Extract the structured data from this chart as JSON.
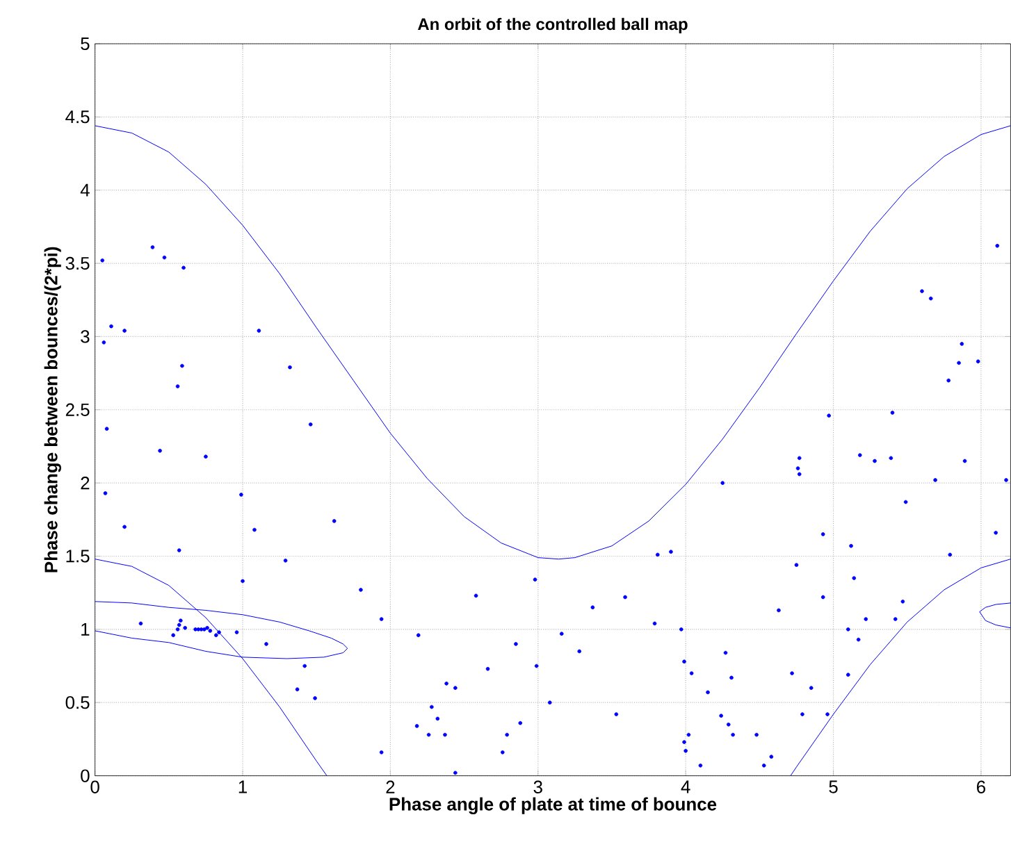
{
  "chart_data": {
    "type": "scatter",
    "title": "An orbit of the controlled ball map",
    "xlabel": "Phase angle of plate at time of bounce",
    "ylabel": "Phase change between bounces/(2*pi)",
    "xlim": [
      0,
      6.2
    ],
    "ylim": [
      0,
      5
    ],
    "xticks": [
      0,
      1,
      2,
      3,
      4,
      5,
      6
    ],
    "yticks": [
      0,
      0.5,
      1,
      1.5,
      2,
      2.5,
      3,
      3.5,
      4,
      4.5,
      5
    ],
    "grid": true,
    "series": [
      {
        "color": "#0000ff",
        "marker": "circle",
        "x": [
          0.05,
          0.39,
          0.47,
          0.6,
          0.11,
          0.06,
          0.2,
          1.11,
          0.59,
          1.32,
          0.56,
          6.11,
          5.6,
          5.66,
          5.87,
          5.85,
          5.98,
          5.78,
          0.08,
          0.44,
          0.75,
          1.46,
          0.07,
          0.99,
          0.2,
          1.08,
          1.62,
          0.57,
          1.29,
          1.0,
          1.8,
          1.94,
          0.31,
          0.53,
          0.56,
          0.57,
          0.58,
          0.61,
          0.68,
          0.7,
          0.72,
          0.74,
          0.76,
          0.78,
          0.82,
          0.84,
          0.96,
          1.16,
          1.42,
          1.37,
          1.49,
          1.94,
          2.98,
          2.58,
          3.37,
          3.59,
          3.81,
          3.9,
          3.79,
          3.97,
          2.19,
          3.16,
          2.85,
          3.28,
          2.66,
          2.99,
          3.99,
          4.04,
          4.15,
          2.38,
          2.44,
          3.08,
          2.28,
          3.53,
          2.32,
          2.18,
          2.88,
          2.26,
          2.37,
          2.79,
          4.02,
          3.99,
          2.76,
          4.0,
          2.44,
          4.1,
          4.97,
          5.4,
          4.25,
          4.77,
          4.76,
          4.77,
          5.18,
          5.28,
          5.39,
          5.89,
          5.69,
          6.17,
          5.49,
          4.93,
          5.12,
          6.1,
          5.79,
          4.75,
          5.14,
          4.93,
          5.47,
          4.63,
          5.22,
          5.42,
          5.1,
          5.17,
          4.27,
          4.31,
          4.72,
          5.1,
          4.85,
          4.24,
          4.29,
          4.32,
          4.48,
          4.79,
          4.96,
          4.58,
          4.53
        ],
        "values": [
          3.52,
          3.61,
          3.54,
          3.47,
          3.07,
          2.96,
          3.04,
          3.04,
          2.8,
          2.79,
          2.66,
          3.62,
          3.31,
          3.26,
          2.95,
          2.82,
          2.83,
          2.7,
          2.37,
          2.22,
          2.18,
          2.4,
          1.93,
          1.92,
          1.7,
          1.68,
          1.74,
          1.54,
          1.47,
          1.33,
          1.27,
          1.07,
          1.04,
          0.96,
          1.0,
          1.03,
          1.06,
          1.01,
          1.0,
          1.0,
          1.0,
          1.0,
          1.01,
          0.99,
          0.96,
          0.98,
          0.98,
          0.9,
          0.75,
          0.59,
          0.53,
          0.16,
          1.34,
          1.23,
          1.15,
          1.22,
          1.51,
          1.53,
          1.04,
          1.0,
          0.96,
          0.97,
          0.9,
          0.85,
          0.73,
          0.75,
          0.78,
          0.7,
          0.57,
          0.63,
          0.6,
          0.5,
          0.47,
          0.42,
          0.39,
          0.34,
          0.36,
          0.28,
          0.28,
          0.28,
          0.28,
          0.23,
          0.16,
          0.17,
          0.02,
          0.07,
          2.46,
          2.48,
          2.0,
          2.17,
          2.1,
          2.06,
          2.19,
          2.15,
          2.17,
          2.15,
          2.02,
          2.02,
          1.87,
          1.65,
          1.57,
          1.66,
          1.51,
          1.44,
          1.35,
          1.22,
          1.19,
          1.13,
          1.07,
          1.07,
          1.0,
          0.93,
          0.84,
          0.67,
          0.7,
          0.69,
          0.6,
          0.41,
          0.35,
          0.28,
          0.28,
          0.42,
          0.42,
          0.13,
          0.07
        ]
      },
      {
        "type": "line",
        "color": "#0000ff",
        "marker": "none",
        "x": [
          0,
          0.25,
          0.5,
          0.75,
          1,
          1.25,
          1.5,
          1.75,
          2,
          2.25,
          2.5,
          2.75,
          3,
          3.14,
          3.25,
          3.5,
          3.75,
          4,
          4.25,
          4.5,
          4.75,
          5,
          5.25,
          5.5,
          5.75,
          6,
          6.2
        ],
        "values": [
          4.44,
          4.39,
          4.26,
          4.04,
          3.76,
          3.43,
          3.06,
          2.7,
          2.34,
          2.03,
          1.77,
          1.59,
          1.49,
          1.48,
          1.49,
          1.57,
          1.74,
          1.99,
          2.3,
          2.65,
          3.02,
          3.38,
          3.72,
          4.01,
          4.23,
          4.38,
          4.44
        ]
      },
      {
        "type": "line",
        "color": "#0000ff",
        "marker": "none",
        "x": [
          0,
          0.25,
          0.5,
          0.75,
          1,
          1.25,
          1.5,
          1.57,
          3.14,
          4.71,
          4.75,
          5,
          5.25,
          5.5,
          5.75,
          6,
          6.2
        ],
        "values": [
          1.48,
          1.43,
          1.3,
          1.08,
          0.8,
          0.47,
          0.1,
          0,
          null,
          0,
          0.06,
          0.42,
          0.76,
          1.05,
          1.27,
          1.42,
          1.48
        ]
      },
      {
        "type": "line",
        "color": "#0000ff",
        "marker": "none",
        "x": [
          0,
          0.25,
          0.5,
          0.75,
          1.0,
          1.25,
          1.45,
          1.6,
          1.68,
          1.71,
          1.68,
          1.55,
          1.3,
          1.0,
          0.75,
          0.5,
          0.25,
          0
        ],
        "values": [
          1.19,
          1.18,
          1.15,
          1.13,
          1.1,
          1.05,
          0.99,
          0.94,
          0.9,
          0.87,
          0.84,
          0.81,
          0.8,
          0.81,
          0.85,
          0.91,
          0.94,
          0.99
        ]
      },
      {
        "type": "line",
        "color": "#0000ff",
        "marker": "none",
        "x": [
          6.2,
          6.1,
          6.03,
          5.99,
          6.03,
          6.1,
          6.2
        ],
        "values": [
          1.18,
          1.17,
          1.15,
          1.12,
          1.06,
          1.03,
          1.01
        ]
      }
    ]
  }
}
